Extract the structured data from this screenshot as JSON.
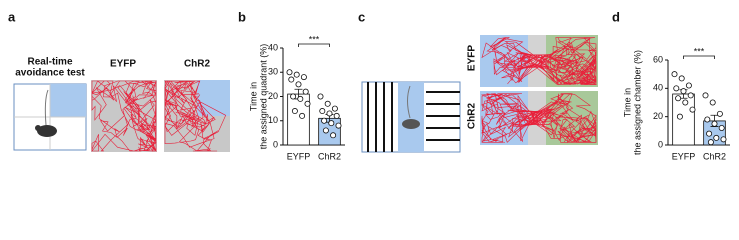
{
  "panel_labels": [
    "a",
    "b",
    "c",
    "d"
  ],
  "panel_a": {
    "title": [
      "Real-time",
      "avoidance test"
    ],
    "groups": [
      "EYFP",
      "ChR2"
    ]
  },
  "panel_c": {
    "groups": [
      "EYFP",
      "ChR2"
    ]
  },
  "chart_data": [
    {
      "type": "bar",
      "y_label": [
        "Time in",
        "the assigned quadrant (%)"
      ],
      "categories": [
        "EYFP",
        "ChR2"
      ],
      "values": [
        21,
        11
      ],
      "errors": [
        2,
        1.6
      ],
      "colors": [
        "#ffffff",
        "#a9c9ee"
      ],
      "points": [
        [
          30,
          29,
          28,
          27,
          25,
          22,
          20,
          19,
          17,
          14,
          12
        ],
        [
          20,
          17,
          15,
          14,
          13,
          12,
          10,
          9,
          8,
          6,
          4
        ]
      ],
      "ylim": [
        0,
        40
      ],
      "yticks": [
        0,
        10,
        20,
        30,
        40
      ],
      "significance": "***"
    },
    {
      "type": "bar",
      "y_label": [
        "Time in",
        "the assigned chamber (%)"
      ],
      "categories": [
        "EYFP",
        "ChR2"
      ],
      "values": [
        36,
        17
      ],
      "errors": [
        3,
        4
      ],
      "colors": [
        "#ffffff",
        "#a9c9ee"
      ],
      "points": [
        [
          50,
          47,
          42,
          40,
          38,
          35,
          33,
          30,
          25,
          20
        ],
        [
          35,
          30,
          22,
          18,
          15,
          12,
          8,
          5,
          4,
          2
        ]
      ],
      "ylim": [
        0,
        60
      ],
      "yticks": [
        0,
        20,
        40,
        60
      ],
      "significance": "***"
    }
  ]
}
